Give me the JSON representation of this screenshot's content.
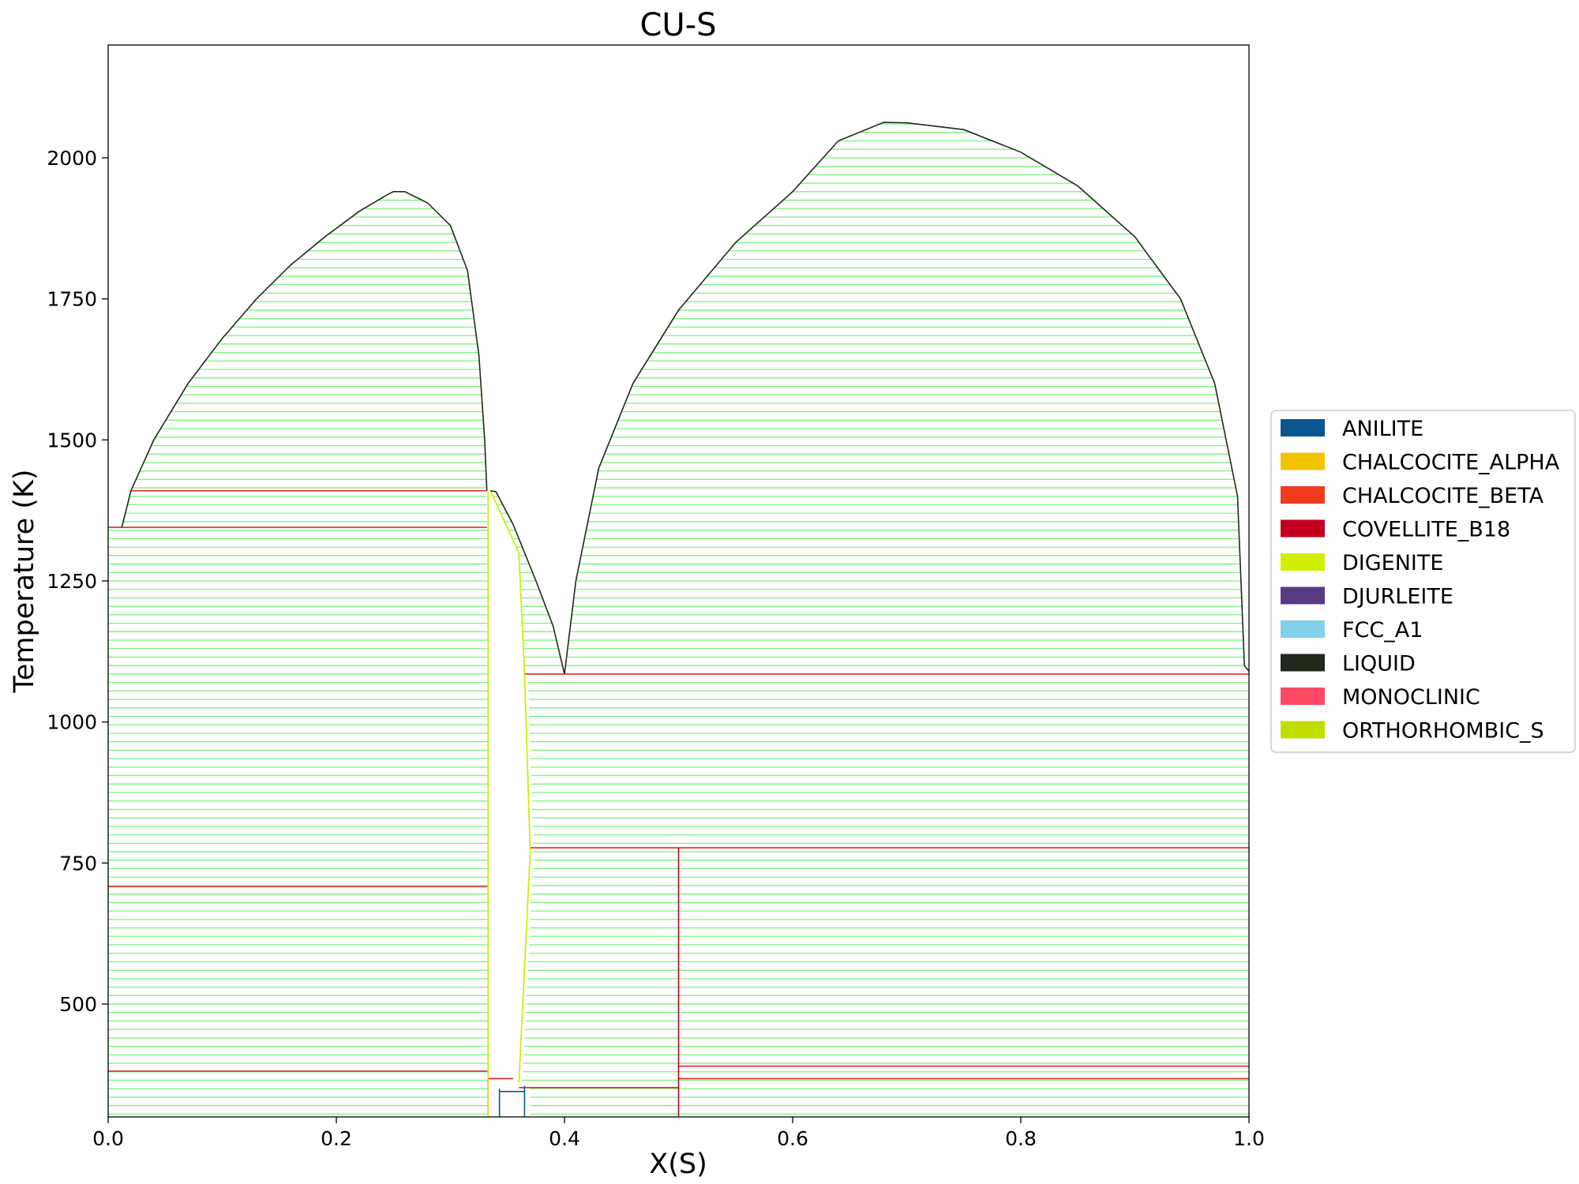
{
  "chart_data": {
    "type": "line",
    "title": "CU-S",
    "xlabel": "X(S)",
    "ylabel": "Temperature (K)",
    "xlim": [
      0.0,
      1.0
    ],
    "ylim": [
      300,
      2200
    ],
    "xticks": [
      0.0,
      0.2,
      0.4,
      0.6,
      0.8,
      1.0
    ],
    "xtick_labels": [
      "0.0",
      "0.2",
      "0.4",
      "0.6",
      "0.8",
      "1.0"
    ],
    "yticks": [
      500,
      750,
      1000,
      1250,
      1500,
      1750,
      2000
    ],
    "ytick_labels": [
      "500",
      "750",
      "1000",
      "1250",
      "1500",
      "1750",
      "2000"
    ],
    "grid": false,
    "legend_placement": "right",
    "legend": [
      {
        "name": "ANILITE",
        "color": "#0a5690"
      },
      {
        "name": "CHALCOCITE_ALPHA",
        "color": "#f4c300"
      },
      {
        "name": "CHALCOCITE_BETA",
        "color": "#f03c1c"
      },
      {
        "name": "COVELLITE_B18",
        "color": "#c0001e"
      },
      {
        "name": "DIGENITE",
        "color": "#d0ef00"
      },
      {
        "name": "DJURLEITE",
        "color": "#583a82"
      },
      {
        "name": "FCC_A1",
        "color": "#82d0ea"
      },
      {
        "name": "LIQUID",
        "color": "#20291a"
      },
      {
        "name": "MONOCLINIC",
        "color": "#ff4a66"
      },
      {
        "name": "ORTHORHOMBIC_S",
        "color": "#c2de00"
      }
    ],
    "tieline_color": "#7cf27c",
    "tieline_step_K": 15,
    "liquidus_left": [
      [
        0.012,
        1345
      ],
      [
        0.02,
        1410
      ],
      [
        0.04,
        1500
      ],
      [
        0.07,
        1600
      ],
      [
        0.1,
        1680
      ],
      [
        0.13,
        1750
      ],
      [
        0.16,
        1810
      ],
      [
        0.19,
        1860
      ],
      [
        0.22,
        1905
      ],
      [
        0.245,
        1935
      ],
      [
        0.25,
        1940
      ],
      [
        0.26,
        1940
      ],
      [
        0.28,
        1920
      ],
      [
        0.3,
        1880
      ],
      [
        0.315,
        1800
      ],
      [
        0.325,
        1650
      ],
      [
        0.33,
        1500
      ],
      [
        0.332,
        1410
      ]
    ],
    "liquidus_middle": [
      [
        0.335,
        1410
      ],
      [
        0.34,
        1408
      ],
      [
        0.355,
        1350
      ],
      [
        0.375,
        1250
      ],
      [
        0.39,
        1170
      ],
      [
        0.4,
        1085
      ]
    ],
    "liquidus_right": [
      [
        0.4,
        1085
      ],
      [
        0.41,
        1250
      ],
      [
        0.43,
        1450
      ],
      [
        0.46,
        1600
      ],
      [
        0.5,
        1730
      ],
      [
        0.55,
        1850
      ],
      [
        0.6,
        1940
      ],
      [
        0.64,
        2030
      ],
      [
        0.68,
        2063
      ],
      [
        0.7,
        2062
      ],
      [
        0.75,
        2050
      ],
      [
        0.8,
        2010
      ],
      [
        0.85,
        1950
      ],
      [
        0.9,
        1860
      ],
      [
        0.94,
        1750
      ],
      [
        0.97,
        1600
      ],
      [
        0.99,
        1400
      ],
      [
        0.996,
        1100
      ],
      [
        1.0,
        1090
      ]
    ],
    "digenite_boundary_left": [
      [
        0.333,
        1410
      ],
      [
        0.333,
        370
      ]
    ],
    "digenite_boundary_right": [
      [
        0.335,
        1410
      ],
      [
        0.36,
        1300
      ],
      [
        0.365,
        1085
      ],
      [
        0.37,
        770
      ],
      [
        0.36,
        360
      ]
    ],
    "invariant_lines": [
      {
        "x": [
          0.0,
          0.332
        ],
        "T": 1345
      },
      {
        "x": [
          0.02,
          0.332
        ],
        "T": 1410
      },
      {
        "x": [
          0.365,
          1.0
        ],
        "T": 1085
      },
      {
        "x": [
          0.37,
          1.0
        ],
        "T": 777
      },
      {
        "x": [
          0.0,
          0.333
        ],
        "T": 708
      },
      {
        "x": [
          0.0,
          0.333
        ],
        "T": 381
      },
      {
        "x": [
          0.333,
          0.355
        ],
        "T": 368
      },
      {
        "x": [
          0.36,
          0.5
        ],
        "T": 352
      },
      {
        "x": [
          0.5,
          1.0
        ],
        "T": 390
      },
      {
        "x": [
          0.5,
          1.0
        ],
        "T": 368
      }
    ],
    "vertical_lines": [
      {
        "x": 0.5,
        "T": [
          300,
          777
        ],
        "color": "#c0001e"
      },
      {
        "x": 0.343,
        "T": [
          300,
          350
        ],
        "color": "#0a5690"
      },
      {
        "x": 0.365,
        "T": [
          300,
          355
        ],
        "color": "#0a5690"
      },
      {
        "x": 0.333,
        "T": [
          300,
          368
        ],
        "color": "#f4c300"
      }
    ],
    "sub_markers": [
      {
        "x": [
          0.343,
          0.365
        ],
        "T": 345
      }
    ]
  }
}
